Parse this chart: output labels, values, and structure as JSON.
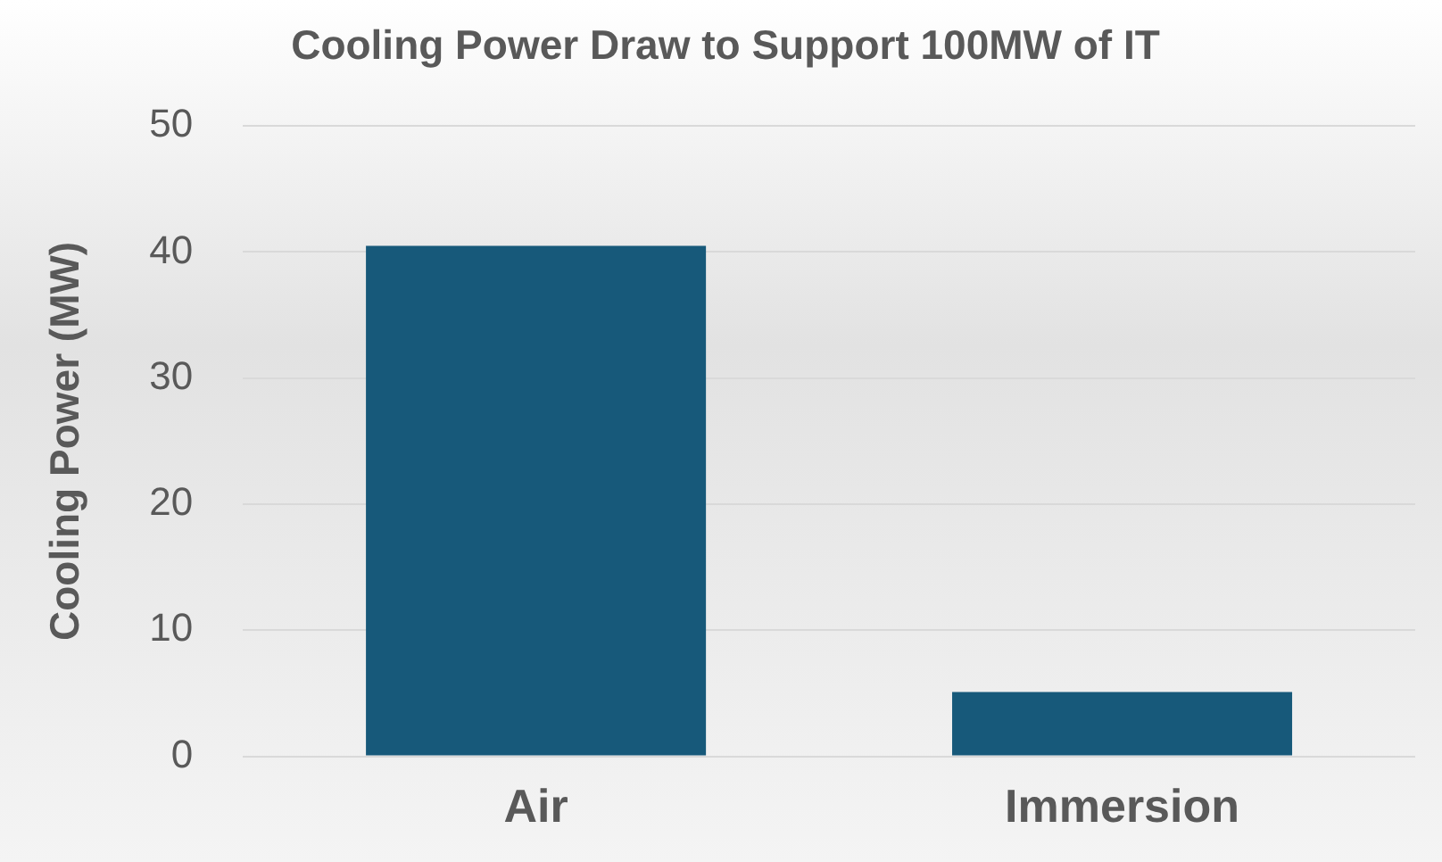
{
  "chart_data": {
    "type": "bar",
    "title": "Cooling Power Draw to Support 100MW of IT",
    "ylabel": "Cooling Power (MW)",
    "categories": [
      "Air",
      "Immersion"
    ],
    "series": [
      {
        "color": "#17597a",
        "values": [
          40.5,
          5.1
        ]
      }
    ],
    "ylim": [
      0,
      50
    ],
    "yticks": [
      0,
      10,
      20,
      30,
      40,
      50
    ],
    "grid": "y",
    "legend": false
  }
}
